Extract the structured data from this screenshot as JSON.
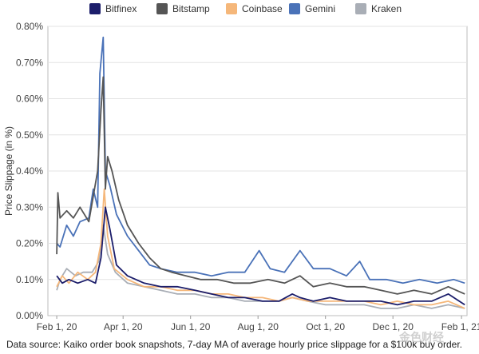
{
  "chart_data": {
    "type": "line",
    "title": "",
    "xlabel": "",
    "ylabel": "Price Slippage (in %)",
    "ylim": [
      0.0,
      0.8
    ],
    "xlim": [
      "2020-01-24",
      "2021-02-06"
    ],
    "grid": true,
    "legend_position": "top",
    "y_ticks": [
      0.0,
      0.1,
      0.2,
      0.3,
      0.4,
      0.5,
      0.6,
      0.7,
      0.8
    ],
    "y_tick_labels": [
      "0.00%",
      "0.10%",
      "0.20%",
      "0.30%",
      "0.40%",
      "0.50%",
      "0.60%",
      "0.70%",
      "0.80%"
    ],
    "x_ticks": [
      "2020-02-01",
      "2020-04-01",
      "2020-06-01",
      "2020-08-01",
      "2020-10-01",
      "2020-12-01",
      "2021-02-01"
    ],
    "x_tick_labels": [
      "Feb 1, 20",
      "Apr 1, 20",
      "Jun 1, 20",
      "Aug 1, 20",
      "Oct 1, 20",
      "Dec 1, 20",
      "Feb 1, 21"
    ],
    "series": [
      {
        "name": "Bitfinex",
        "color": "#1c1e6b",
        "points": [
          [
            "2020-02-01",
            0.11
          ],
          [
            "2020-02-06",
            0.09
          ],
          [
            "2020-02-12",
            0.1
          ],
          [
            "2020-02-20",
            0.09
          ],
          [
            "2020-02-29",
            0.1
          ],
          [
            "2020-03-07",
            0.09
          ],
          [
            "2020-03-12",
            0.16
          ],
          [
            "2020-03-16",
            0.3
          ],
          [
            "2020-03-20",
            0.24
          ],
          [
            "2020-03-26",
            0.14
          ],
          [
            "2020-04-05",
            0.11
          ],
          [
            "2020-04-20",
            0.09
          ],
          [
            "2020-05-05",
            0.08
          ],
          [
            "2020-05-20",
            0.08
          ],
          [
            "2020-06-05",
            0.07
          ],
          [
            "2020-06-20",
            0.06
          ],
          [
            "2020-07-05",
            0.05
          ],
          [
            "2020-07-20",
            0.05
          ],
          [
            "2020-08-05",
            0.04
          ],
          [
            "2020-08-20",
            0.04
          ],
          [
            "2020-09-01",
            0.06
          ],
          [
            "2020-09-08",
            0.05
          ],
          [
            "2020-09-20",
            0.04
          ],
          [
            "2020-10-05",
            0.05
          ],
          [
            "2020-10-20",
            0.04
          ],
          [
            "2020-11-05",
            0.04
          ],
          [
            "2020-11-20",
            0.04
          ],
          [
            "2020-12-05",
            0.03
          ],
          [
            "2020-12-20",
            0.04
          ],
          [
            "2021-01-05",
            0.04
          ],
          [
            "2021-01-20",
            0.06
          ],
          [
            "2021-01-25",
            0.05
          ],
          [
            "2021-02-04",
            0.03
          ]
        ]
      },
      {
        "name": "Bitstamp",
        "color": "#555555",
        "points": [
          [
            "2020-02-01",
            0.17
          ],
          [
            "2020-02-02",
            0.34
          ],
          [
            "2020-02-04",
            0.27
          ],
          [
            "2020-02-10",
            0.29
          ],
          [
            "2020-02-16",
            0.27
          ],
          [
            "2020-02-22",
            0.3
          ],
          [
            "2020-03-01",
            0.26
          ],
          [
            "2020-03-05",
            0.33
          ],
          [
            "2020-03-09",
            0.4
          ],
          [
            "2020-03-12",
            0.57
          ],
          [
            "2020-03-14",
            0.66
          ],
          [
            "2020-03-16",
            0.35
          ],
          [
            "2020-03-18",
            0.44
          ],
          [
            "2020-03-22",
            0.4
          ],
          [
            "2020-03-28",
            0.32
          ],
          [
            "2020-04-05",
            0.25
          ],
          [
            "2020-04-15",
            0.2
          ],
          [
            "2020-04-25",
            0.16
          ],
          [
            "2020-05-05",
            0.13
          ],
          [
            "2020-05-15",
            0.12
          ],
          [
            "2020-05-28",
            0.11
          ],
          [
            "2020-06-10",
            0.1
          ],
          [
            "2020-06-25",
            0.1
          ],
          [
            "2020-07-10",
            0.09
          ],
          [
            "2020-07-25",
            0.09
          ],
          [
            "2020-08-10",
            0.1
          ],
          [
            "2020-08-25",
            0.09
          ],
          [
            "2020-09-08",
            0.11
          ],
          [
            "2020-09-20",
            0.08
          ],
          [
            "2020-10-05",
            0.09
          ],
          [
            "2020-10-20",
            0.08
          ],
          [
            "2020-11-05",
            0.08
          ],
          [
            "2020-11-20",
            0.07
          ],
          [
            "2020-12-05",
            0.06
          ],
          [
            "2020-12-20",
            0.07
          ],
          [
            "2021-01-05",
            0.06
          ],
          [
            "2021-01-20",
            0.08
          ],
          [
            "2021-02-04",
            0.06
          ]
        ]
      },
      {
        "name": "Coinbase",
        "color": "#f5b77a",
        "points": [
          [
            "2020-02-01",
            0.08
          ],
          [
            "2020-02-06",
            0.11
          ],
          [
            "2020-02-12",
            0.09
          ],
          [
            "2020-02-20",
            0.12
          ],
          [
            "2020-02-29",
            0.1
          ],
          [
            "2020-03-07",
            0.12
          ],
          [
            "2020-03-12",
            0.2
          ],
          [
            "2020-03-15",
            0.35
          ],
          [
            "2020-03-18",
            0.22
          ],
          [
            "2020-03-24",
            0.13
          ],
          [
            "2020-04-05",
            0.1
          ],
          [
            "2020-04-20",
            0.08
          ],
          [
            "2020-05-05",
            0.08
          ],
          [
            "2020-05-20",
            0.07
          ],
          [
            "2020-06-05",
            0.07
          ],
          [
            "2020-06-20",
            0.06
          ],
          [
            "2020-07-05",
            0.06
          ],
          [
            "2020-07-20",
            0.05
          ],
          [
            "2020-08-05",
            0.05
          ],
          [
            "2020-08-20",
            0.04
          ],
          [
            "2020-09-01",
            0.05
          ],
          [
            "2020-09-15",
            0.04
          ],
          [
            "2020-10-01",
            0.04
          ],
          [
            "2020-10-20",
            0.04
          ],
          [
            "2020-11-05",
            0.04
          ],
          [
            "2020-11-20",
            0.03
          ],
          [
            "2020-12-05",
            0.04
          ],
          [
            "2020-12-20",
            0.03
          ],
          [
            "2021-01-05",
            0.03
          ],
          [
            "2021-01-20",
            0.04
          ],
          [
            "2021-02-04",
            0.02
          ]
        ]
      },
      {
        "name": "Gemini",
        "color": "#4a72b8",
        "points": [
          [
            "2020-02-01",
            0.2
          ],
          [
            "2020-02-04",
            0.19
          ],
          [
            "2020-02-10",
            0.25
          ],
          [
            "2020-02-16",
            0.22
          ],
          [
            "2020-02-22",
            0.26
          ],
          [
            "2020-03-01",
            0.27
          ],
          [
            "2020-03-05",
            0.35
          ],
          [
            "2020-03-09",
            0.3
          ],
          [
            "2020-03-11",
            0.67
          ],
          [
            "2020-03-14",
            0.77
          ],
          [
            "2020-03-16",
            0.4
          ],
          [
            "2020-03-20",
            0.36
          ],
          [
            "2020-03-26",
            0.28
          ],
          [
            "2020-04-05",
            0.22
          ],
          [
            "2020-04-15",
            0.18
          ],
          [
            "2020-04-25",
            0.14
          ],
          [
            "2020-05-05",
            0.13
          ],
          [
            "2020-05-20",
            0.12
          ],
          [
            "2020-06-05",
            0.12
          ],
          [
            "2020-06-20",
            0.11
          ],
          [
            "2020-07-05",
            0.12
          ],
          [
            "2020-07-20",
            0.12
          ],
          [
            "2020-08-02",
            0.18
          ],
          [
            "2020-08-12",
            0.13
          ],
          [
            "2020-08-25",
            0.12
          ],
          [
            "2020-09-08",
            0.18
          ],
          [
            "2020-09-20",
            0.13
          ],
          [
            "2020-10-05",
            0.13
          ],
          [
            "2020-10-20",
            0.11
          ],
          [
            "2020-11-01",
            0.15
          ],
          [
            "2020-11-10",
            0.1
          ],
          [
            "2020-11-25",
            0.1
          ],
          [
            "2020-12-10",
            0.09
          ],
          [
            "2020-12-25",
            0.1
          ],
          [
            "2021-01-10",
            0.09
          ],
          [
            "2021-01-25",
            0.1
          ],
          [
            "2021-02-04",
            0.09
          ]
        ]
      },
      {
        "name": "Kraken",
        "color": "#a9aeb6",
        "points": [
          [
            "2020-02-01",
            0.07
          ],
          [
            "2020-02-04",
            0.1
          ],
          [
            "2020-02-10",
            0.13
          ],
          [
            "2020-02-18",
            0.11
          ],
          [
            "2020-02-25",
            0.12
          ],
          [
            "2020-03-04",
            0.12
          ],
          [
            "2020-03-10",
            0.15
          ],
          [
            "2020-03-14",
            0.25
          ],
          [
            "2020-03-18",
            0.17
          ],
          [
            "2020-03-25",
            0.12
          ],
          [
            "2020-04-05",
            0.09
          ],
          [
            "2020-04-20",
            0.08
          ],
          [
            "2020-05-05",
            0.07
          ],
          [
            "2020-05-20",
            0.06
          ],
          [
            "2020-06-05",
            0.06
          ],
          [
            "2020-06-20",
            0.05
          ],
          [
            "2020-07-05",
            0.05
          ],
          [
            "2020-07-20",
            0.04
          ],
          [
            "2020-08-05",
            0.04
          ],
          [
            "2020-08-20",
            0.04
          ],
          [
            "2020-09-01",
            0.05
          ],
          [
            "2020-09-15",
            0.04
          ],
          [
            "2020-10-01",
            0.03
          ],
          [
            "2020-10-20",
            0.03
          ],
          [
            "2020-11-05",
            0.03
          ],
          [
            "2020-11-20",
            0.02
          ],
          [
            "2020-12-05",
            0.02
          ],
          [
            "2020-12-20",
            0.03
          ],
          [
            "2021-01-05",
            0.02
          ],
          [
            "2021-01-20",
            0.03
          ],
          [
            "2021-02-04",
            0.02
          ]
        ]
      }
    ]
  },
  "source_note": "Data source: Kaiko order book snapshots, 7-day MA of average hourly price slippage for a $100k buy order.",
  "watermark_text": "金色财经"
}
